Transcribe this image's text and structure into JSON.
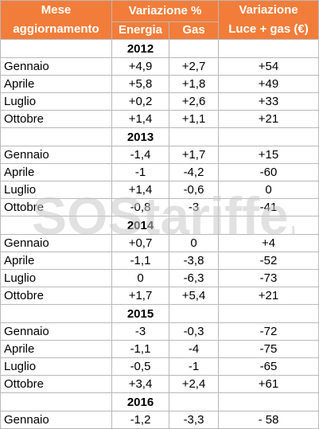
{
  "header": {
    "mese_line1": "Mese",
    "mese_line2": "aggiornamento",
    "variazione_pct": "Variazione %",
    "energia": "Energia",
    "gas": "Gas",
    "variazione_eur_line1": "Variazione",
    "variazione_eur_line2": "Luce + gas (€)"
  },
  "watermark": "SOStariffe.it",
  "colors": {
    "header_bg": "#f27d3a",
    "header_text": "#ffffff",
    "grid": "#b9b9b9"
  },
  "years": [
    {
      "year": "2012",
      "rows": [
        {
          "mese": "Gennaio",
          "energia": "+4,9",
          "gas": "+2,7",
          "eur": "+54"
        },
        {
          "mese": "Aprile",
          "energia": "+5,8",
          "gas": "+1,8",
          "eur": "+49"
        },
        {
          "mese": "Luglio",
          "energia": "+0,2",
          "gas": "+2,6",
          "eur": "+33"
        },
        {
          "mese": "Ottobre",
          "energia": "+1,4",
          "gas": "+1,1",
          "eur": "+21"
        }
      ]
    },
    {
      "year": "2013",
      "rows": [
        {
          "mese": "Gennaio",
          "energia": "-1,4",
          "gas": "+1,7",
          "eur": "+15"
        },
        {
          "mese": "Aprile",
          "energia": "-1",
          "gas": "-4,2",
          "eur": "-60"
        },
        {
          "mese": "Luglio",
          "energia": "+1,4",
          "gas": "-0,6",
          "eur": "0"
        },
        {
          "mese": "Ottobre",
          "energia": "-0,8",
          "gas": "-3",
          "eur": "-41"
        }
      ]
    },
    {
      "year": "2014",
      "rows": [
        {
          "mese": "Gennaio",
          "energia": "+0,7",
          "gas": "0",
          "eur": "+4"
        },
        {
          "mese": "Aprile",
          "energia": "-1,1",
          "gas": "-3,8",
          "eur": "-52"
        },
        {
          "mese": "Luglio",
          "energia": "0",
          "gas": "-6,3",
          "eur": "-73"
        },
        {
          "mese": "Ottobre",
          "energia": "+1,7",
          "gas": "+5,4",
          "eur": "+21"
        }
      ]
    },
    {
      "year": "2015",
      "rows": [
        {
          "mese": "Gennaio",
          "energia": "-3",
          "gas": "-0,3",
          "eur": "-72"
        },
        {
          "mese": "Aprile",
          "energia": "-1,1",
          "gas": "-4",
          "eur": "-75"
        },
        {
          "mese": "Luglio",
          "energia": "-0,5",
          "gas": "-1",
          "eur": "-65"
        },
        {
          "mese": "Ottobre",
          "energia": "+3,4",
          "gas": "+2,4",
          "eur": "+61"
        }
      ]
    },
    {
      "year": "2016",
      "rows": [
        {
          "mese": "Gennaio",
          "energia": "-1,2",
          "gas": "-3,3",
          "eur": "- 58"
        }
      ]
    }
  ]
}
